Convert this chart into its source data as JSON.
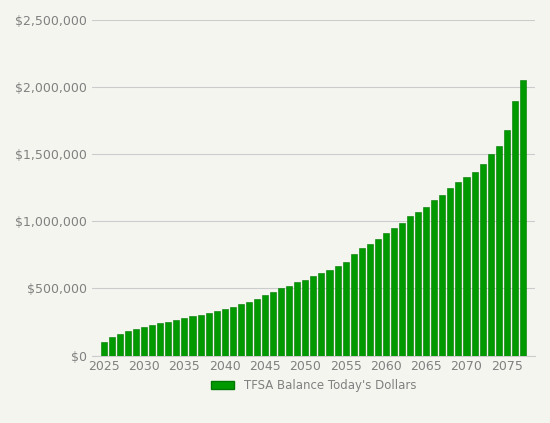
{
  "years": [
    2025,
    2026,
    2027,
    2028,
    2029,
    2030,
    2031,
    2032,
    2033,
    2034,
    2035,
    2036,
    2037,
    2038,
    2039,
    2040,
    2041,
    2042,
    2043,
    2044,
    2045,
    2046,
    2047,
    2048,
    2049,
    2050,
    2051,
    2052,
    2053,
    2054,
    2055,
    2056,
    2057,
    2058,
    2059,
    2060,
    2061,
    2062,
    2063,
    2064,
    2065,
    2066,
    2067,
    2068,
    2069,
    2070,
    2071,
    2072,
    2073,
    2074,
    2075,
    2076,
    2077
  ],
  "values": [
    105000,
    135000,
    160000,
    180000,
    200000,
    215000,
    230000,
    240000,
    250000,
    265000,
    280000,
    295000,
    305000,
    318000,
    330000,
    345000,
    365000,
    385000,
    400000,
    420000,
    450000,
    475000,
    500000,
    520000,
    545000,
    565000,
    590000,
    615000,
    640000,
    665000,
    700000,
    760000,
    800000,
    835000,
    870000,
    910000,
    950000,
    990000,
    1040000,
    1070000,
    1110000,
    1160000,
    1200000,
    1250000,
    1290000,
    1330000,
    1370000,
    1430000,
    1500000,
    1560000,
    1680000,
    1900000,
    2050000
  ],
  "bar_color": "#009900",
  "bar_edge_color": "#007700",
  "background_color": "#f5f5f0",
  "legend_label": "TFSA Balance Today's Dollars",
  "legend_color": "#009900",
  "ylim": [
    0,
    2500000
  ],
  "ytick_values": [
    0,
    500000,
    1000000,
    1500000,
    2000000,
    2500000
  ],
  "xtick_values": [
    2025,
    2030,
    2035,
    2040,
    2045,
    2050,
    2055,
    2060,
    2065,
    2070,
    2075
  ],
  "grid_color": "#cccccc",
  "tick_label_color": "#808080",
  "tick_fontsize": 9
}
